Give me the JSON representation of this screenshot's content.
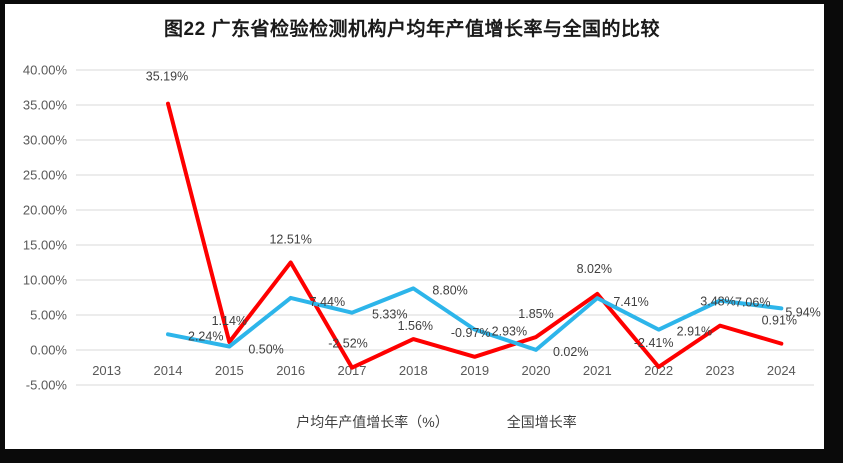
{
  "page": {
    "title": "图22  广东省检验检测机构户均年产值增长率与全国的比较"
  },
  "chart_data": {
    "type": "line",
    "title": "图22  广东省检验检测机构户均年产值增长率与全国的比较",
    "categories": [
      "2013",
      "2014",
      "2015",
      "2016",
      "2017",
      "2018",
      "2019",
      "2020",
      "2021",
      "2022",
      "2023",
      "2024"
    ],
    "series": [
      {
        "name": "户均年产值增长率（%）",
        "color": "#fe0000",
        "values": [
          null,
          35.19,
          1.14,
          12.51,
          -2.52,
          1.56,
          -0.97,
          1.85,
          8.02,
          -2.41,
          3.48,
          0.91
        ],
        "labels": [
          null,
          "35.19%",
          "1.14%",
          "12.51%",
          "-2.52%",
          "1.56%",
          "-0.97%",
          "1.85%",
          "8.02%",
          "-2.41%",
          "3.48%",
          "0.91%"
        ],
        "label_anchor": "middle",
        "label_offsets": [
          null,
          [
            -1,
            -23
          ],
          [
            0,
            -17
          ],
          [
            0,
            -19
          ],
          [
            -4,
            -20
          ],
          [
            2,
            -9
          ],
          [
            -4,
            -20
          ],
          [
            0,
            -19
          ],
          [
            -3,
            -21
          ],
          [
            -5,
            -20
          ],
          [
            -2,
            -20
          ],
          [
            -2,
            -19
          ]
        ]
      },
      {
        "name": "全国增长率",
        "color": "#2db5ea",
        "values": [
          null,
          2.24,
          0.5,
          7.44,
          5.33,
          8.8,
          2.93,
          0.02,
          7.41,
          2.91,
          7.06,
          5.94
        ],
        "labels": [
          null,
          "2.24%",
          "0.50%",
          "7.44%",
          "5.33%",
          "8.80%",
          "2.93%",
          "0.02%",
          "7.41%",
          "2.91%",
          "7.06%",
          "5.94%"
        ],
        "label_anchor": "start",
        "label_offsets": [
          null,
          [
            20,
            6
          ],
          [
            19,
            7
          ],
          [
            19,
            8
          ],
          [
            20,
            6
          ],
          [
            19,
            6
          ],
          [
            17,
            6
          ],
          [
            17,
            6
          ],
          [
            16,
            8
          ],
          [
            18,
            6
          ],
          [
            15,
            6
          ],
          [
            4,
            8
          ]
        ]
      }
    ],
    "y_axis": {
      "min": -5,
      "max": 40,
      "step": 5,
      "tick_labels": [
        "40.00%",
        "35.00%",
        "30.00%",
        "25.00%",
        "20.00%",
        "15.00%",
        "10.00%",
        "5.00%",
        "0.00%",
        "-5.00%"
      ]
    },
    "grid": true,
    "grid_color": "#d9d9d9",
    "legend_position": "bottom"
  }
}
